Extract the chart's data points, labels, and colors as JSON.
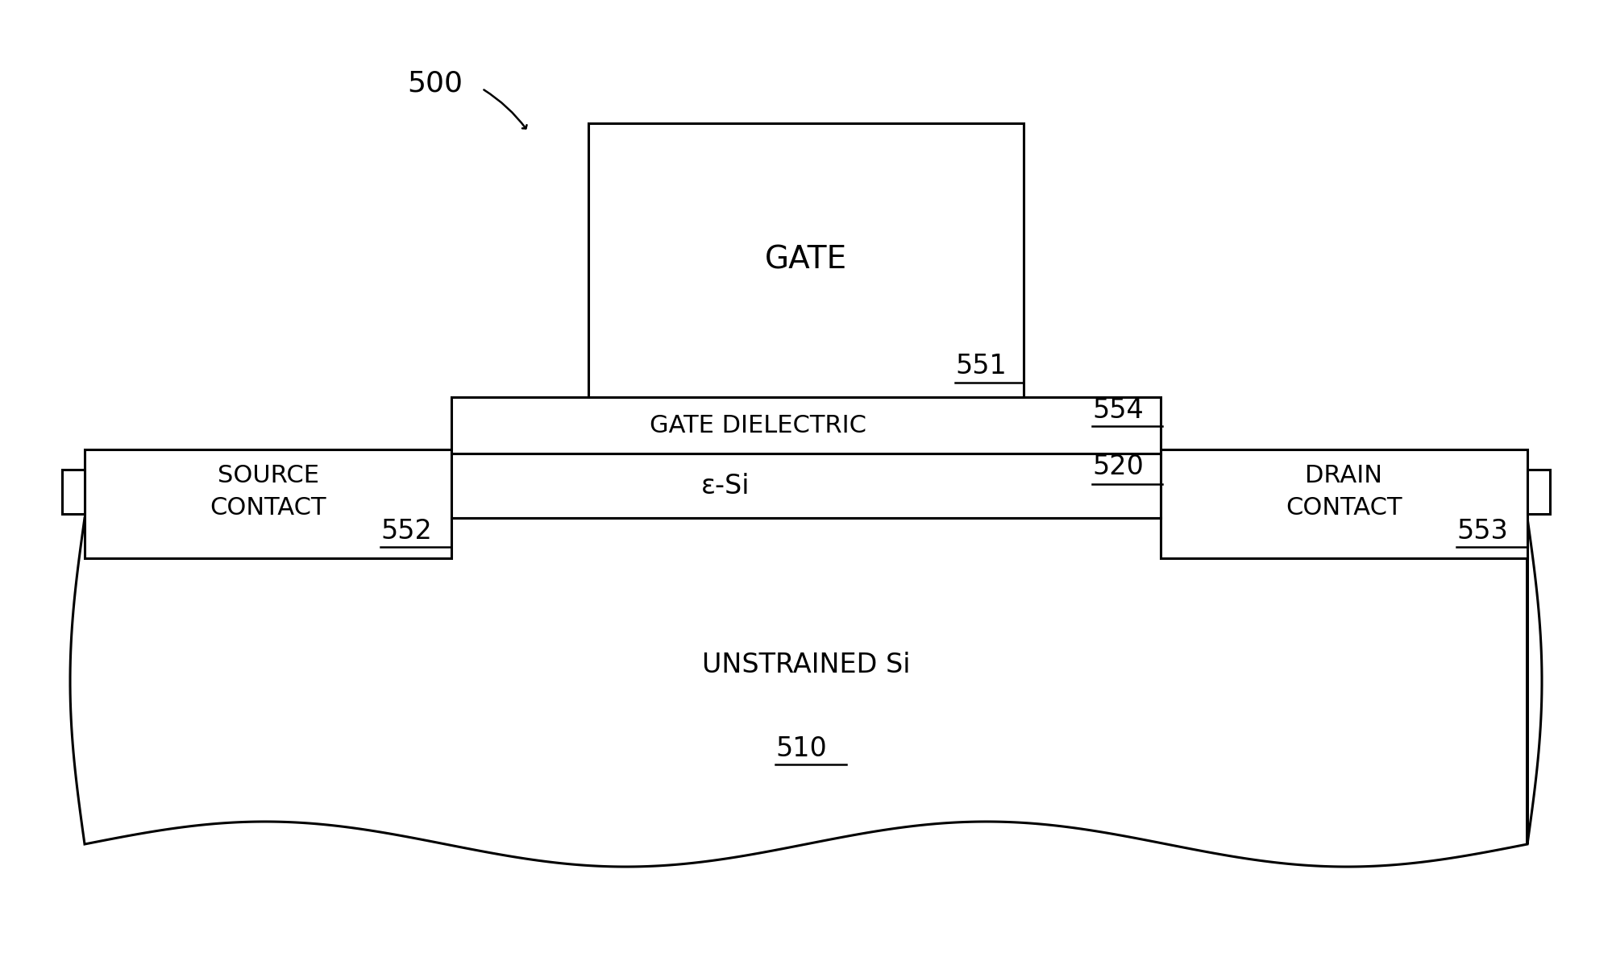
{
  "bg_color": "#ffffff",
  "line_color": "#000000",
  "figsize": [
    20.0,
    11.98
  ],
  "dpi": 100,
  "label_500": "500",
  "label_551": "551",
  "label_554": "554",
  "label_552": "552",
  "label_553": "553",
  "label_520": "520",
  "label_510": "510",
  "text_gate": "GATE",
  "text_gate_dielectric": "GATE DIELECTRIC",
  "text_source": "SOURCE\nCONTACT",
  "text_drain": "DRAIN\nCONTACT",
  "text_esi": "ε-Si",
  "text_unstrained": "UNSTRAINED Si",
  "font_size_labels": 22,
  "font_size_gate": 28,
  "font_size_main": 24,
  "font_size_ref": 24,
  "font_size_500": 26
}
